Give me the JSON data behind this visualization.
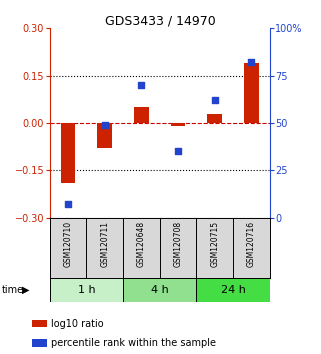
{
  "title": "GDS3433 / 14970",
  "samples": [
    "GSM120710",
    "GSM120711",
    "GSM120648",
    "GSM120708",
    "GSM120715",
    "GSM120716"
  ],
  "log10_ratio": [
    -0.19,
    -0.08,
    0.05,
    -0.01,
    0.03,
    0.19
  ],
  "percentile_rank": [
    7,
    49,
    70,
    35,
    62,
    82
  ],
  "time_groups": [
    {
      "label": "1 h",
      "color_light": "#c8f0c8",
      "color_dark": "#c8f0c8",
      "start": 0,
      "end": 2
    },
    {
      "label": "4 h",
      "color_light": "#90e090",
      "color_dark": "#90e090",
      "start": 2,
      "end": 4
    },
    {
      "label": "24 h",
      "color_light": "#44dd44",
      "color_dark": "#44dd44",
      "start": 4,
      "end": 6
    }
  ],
  "ylim_left": [
    -0.3,
    0.3
  ],
  "ylim_right": [
    0,
    100
  ],
  "yticks_left": [
    -0.3,
    -0.15,
    0,
    0.15,
    0.3
  ],
  "yticks_right": [
    0,
    25,
    50,
    75,
    100
  ],
  "bar_color": "#cc2200",
  "dot_color": "#2244cc",
  "hline_color": "#cc0000",
  "grid_color": "#000000",
  "sample_bg": "#d8d8d8",
  "plot_bg": "#ffffff",
  "bar_width": 0.4,
  "dot_size": 25
}
